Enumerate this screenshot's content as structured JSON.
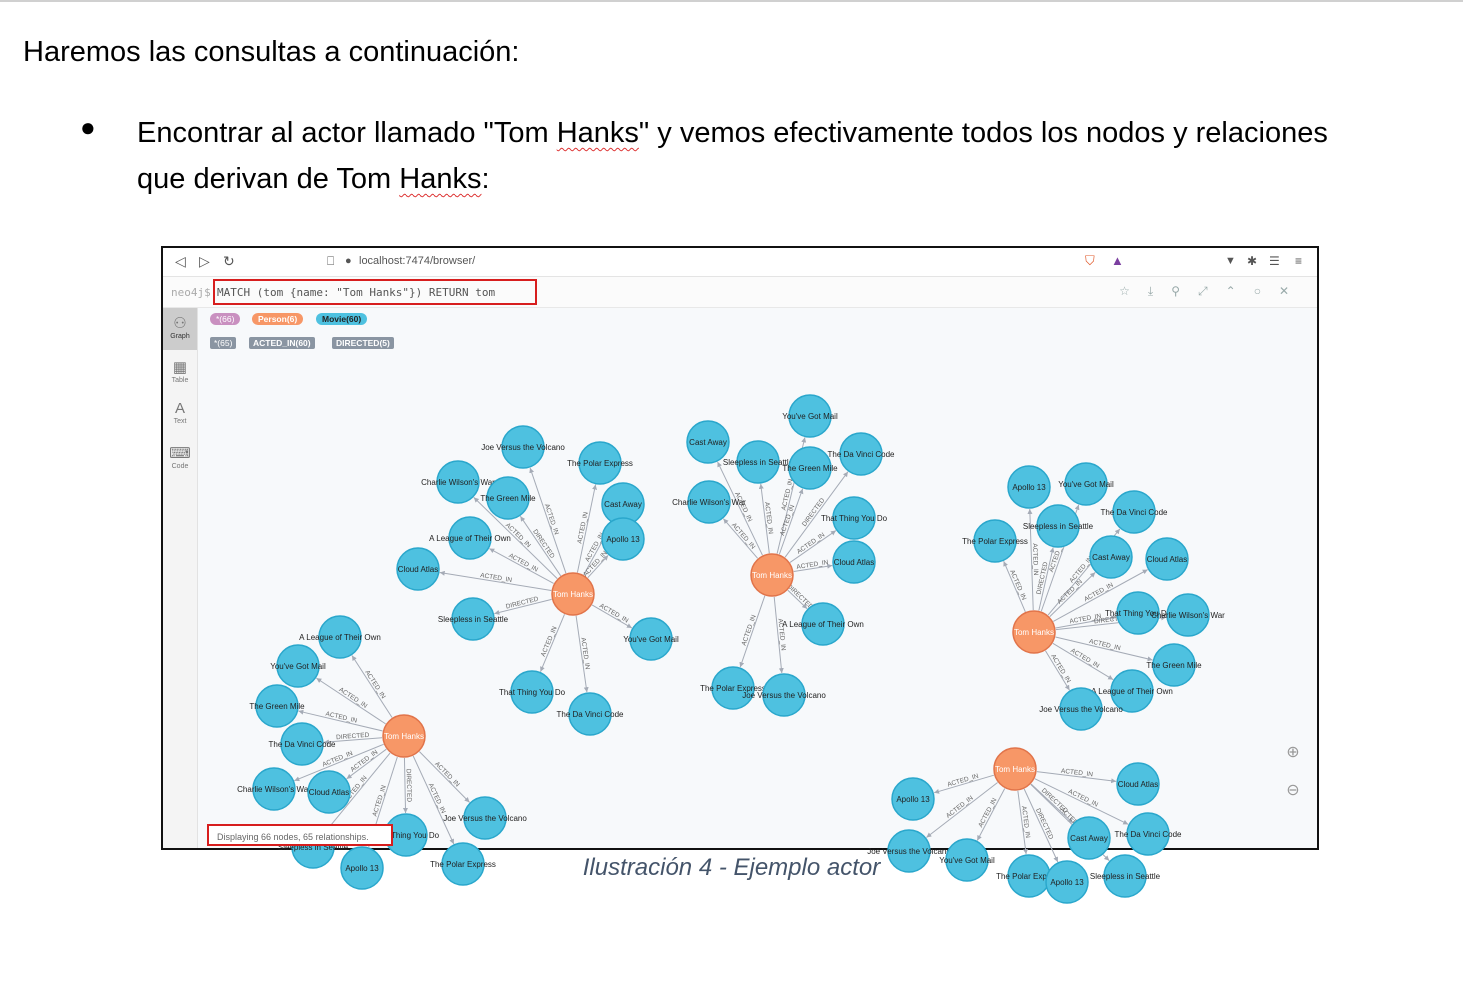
{
  "intro": "Haremos las consultas a continuación:",
  "bullet": {
    "part1": "Encontrar al actor llamado \"Tom ",
    "hanks1": "Hanks",
    "part2": "\" y vemos efectivamente todos los nodos y relaciones que derivan de Tom ",
    "hanks2": "Hanks",
    "part3": ":"
  },
  "browser": {
    "url": "localhost:7474/browser/",
    "prompt": "neo4j$",
    "query": "MATCH (tom {name: \"Tom Hanks\"}) RETURN tom"
  },
  "sidebar": [
    {
      "label": "Graph",
      "icon": "graph-icon"
    },
    {
      "label": "Table",
      "icon": "table-icon"
    },
    {
      "label": "Text",
      "icon": "text-icon"
    },
    {
      "label": "Code",
      "icon": "code-icon"
    }
  ],
  "legend": {
    "all_nodes": "*(66)",
    "person": "Person(6)",
    "movie": "Movie(60)",
    "all_rels": "*(65)",
    "acted_in": "ACTED_IN(60)",
    "directed": "DIRECTED(5)"
  },
  "colors": {
    "movie": "#4ec1e0",
    "movie_stroke": "#2aa7cc",
    "person": "#f79767",
    "person_stroke": "#e1744a",
    "all_pill": "#c990c0",
    "red_box": "#d71e1e"
  },
  "status": "Displaying 66 nodes, 65 relationships.",
  "caption": "Ilustración 4 - Ejemplo actor",
  "graph": {
    "center_label": "Tom Hanks",
    "rel_label": "ACTED_IN",
    "rel_label_alt": "DIRECTED",
    "clusters": [
      {
        "center": [
          375,
          286
        ],
        "movies": [
          {
            "p": [
              325,
              139
            ],
            "t": "Joe Versus the Volcano"
          },
          {
            "p": [
              402,
              155
            ],
            "t": "The Polar Express"
          },
          {
            "p": [
              260,
              174
            ],
            "t": "Charlie Wilson's War"
          },
          {
            "p": [
              310,
              190
            ],
            "t": "The Green Mile"
          },
          {
            "p": [
              425,
              196
            ],
            "t": "Cast Away"
          },
          {
            "p": [
              425,
              231
            ],
            "t": "Apollo 13"
          },
          {
            "p": [
              272,
              230
            ],
            "t": "A League of Their Own"
          },
          {
            "p": [
              220,
              261
            ],
            "t": "Cloud Atlas"
          },
          {
            "p": [
              275,
              311
            ],
            "t": "Sleepless in Seattle"
          },
          {
            "p": [
              453,
              331
            ],
            "t": "You've Got Mail"
          },
          {
            "p": [
              334,
              384
            ],
            "t": "That Thing You Do"
          },
          {
            "p": [
              392,
              406
            ],
            "t": "The Da Vinci Code"
          }
        ]
      },
      {
        "center": [
          574,
          267
        ],
        "movies": [
          {
            "p": [
              612,
              108
            ],
            "t": "You've Got Mail"
          },
          {
            "p": [
              510,
              134
            ],
            "t": "Cast Away"
          },
          {
            "p": [
              560,
              154
            ],
            "t": "Sleepless in Seattle"
          },
          {
            "p": [
              663,
              146
            ],
            "t": "The Da Vinci Code"
          },
          {
            "p": [
              612,
              160
            ],
            "t": "The Green Mile"
          },
          {
            "p": [
              511,
              194
            ],
            "t": "Charlie Wilson's War"
          },
          {
            "p": [
              656,
              210
            ],
            "t": "That Thing You Do"
          },
          {
            "p": [
              656,
              254
            ],
            "t": "Cloud Atlas"
          },
          {
            "p": [
              625,
              316
            ],
            "t": "A League of Their Own"
          },
          {
            "p": [
              535,
              380
            ],
            "t": "The Polar Express"
          },
          {
            "p": [
              586,
              387
            ],
            "t": "Joe Versus the Volcano"
          }
        ]
      },
      {
        "center": [
          836,
          324
        ],
        "movies": [
          {
            "p": [
              831,
              179
            ],
            "t": "Apollo 13"
          },
          {
            "p": [
              888,
              176
            ],
            "t": "You've Got Mail"
          },
          {
            "p": [
              936,
              204
            ],
            "t": "The Da Vinci Code"
          },
          {
            "p": [
              860,
              218
            ],
            "t": "Sleepless in Seattle"
          },
          {
            "p": [
              797,
              233
            ],
            "t": "The Polar Express"
          },
          {
            "p": [
              913,
              249
            ],
            "t": "Cast Away"
          },
          {
            "p": [
              969,
              251
            ],
            "t": "Cloud Atlas"
          },
          {
            "p": [
              940,
              305
            ],
            "t": "That Thing You Do"
          },
          {
            "p": [
              990,
              307
            ],
            "t": "Charlie Wilson's War"
          },
          {
            "p": [
              976,
              357
            ],
            "t": "The Green Mile"
          },
          {
            "p": [
              934,
              383
            ],
            "t": "A League of Their Own"
          },
          {
            "p": [
              883,
              401
            ],
            "t": "Joe Versus the Volcano"
          }
        ]
      },
      {
        "center": [
          206,
          428
        ],
        "movies": [
          {
            "p": [
              142,
              329
            ],
            "t": "A League of Their Own"
          },
          {
            "p": [
              100,
              358
            ],
            "t": "You've Got Mail"
          },
          {
            "p": [
              79,
              398
            ],
            "t": "The Green Mile"
          },
          {
            "p": [
              104,
              436
            ],
            "t": "The Da Vinci Code"
          },
          {
            "p": [
              76,
              481
            ],
            "t": "Charlie Wilson's War"
          },
          {
            "p": [
              131,
              484
            ],
            "t": "Cloud Atlas"
          },
          {
            "p": [
              287,
              510
            ],
            "t": "Joe Versus the Volcano"
          },
          {
            "p": [
              115,
              539
            ],
            "t": "Sleepless in Seattle"
          },
          {
            "p": [
              208,
              527
            ],
            "t": "That Thing You Do"
          },
          {
            "p": [
              164,
              560
            ],
            "t": "Apollo 13"
          },
          {
            "p": [
              265,
              556
            ],
            "t": "The Polar Express"
          }
        ]
      },
      {
        "center": [
          817,
          461
        ],
        "movies": [
          {
            "p": [
              940,
              476
            ],
            "t": "Cloud Atlas"
          },
          {
            "p": [
              715,
              491
            ],
            "t": "Apollo 13"
          },
          {
            "p": [
              950,
              526
            ],
            "t": "The Da Vinci Code"
          },
          {
            "p": [
              891,
              530
            ],
            "t": "Cast Away"
          },
          {
            "p": [
              711,
              543
            ],
            "t": "Joe Versus the Volcano"
          },
          {
            "p": [
              769,
              552
            ],
            "t": "You've Got Mail"
          },
          {
            "p": [
              831,
              568
            ],
            "t": "The Polar Express"
          },
          {
            "p": [
              927,
              568
            ],
            "t": "Sleepless in Seattle"
          },
          {
            "p": [
              869,
              574
            ],
            "t": "Apollo 13"
          }
        ]
      }
    ]
  }
}
